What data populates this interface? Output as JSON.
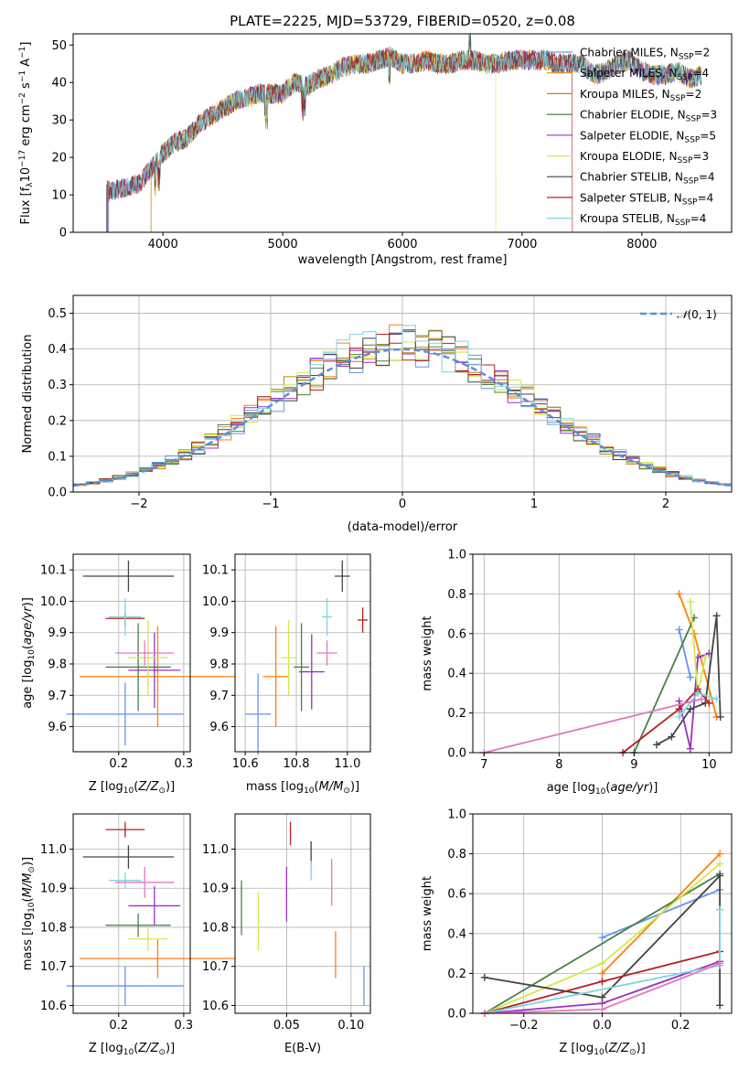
{
  "figure": {
    "title": "PLATE=2225, MJD=53729, FIBERID=0520, z=0.08"
  },
  "series": [
    {
      "name": "Chabrier MILES, N$_{SSP}$=2",
      "label": "Chabrier MILES, N",
      "nssp": "=2",
      "color": "#6495ed"
    },
    {
      "name": "Salpeter MILES, N$_{SSP}$=4",
      "label": "Salpeter MILES, N",
      "nssp": "=4",
      "color": "#ff7f0e"
    },
    {
      "name": "Kroupa MILES, N$_{SSP}$=2",
      "label": "Kroupa MILES, N",
      "nssp": "=2",
      "color": "#b8860b"
    },
    {
      "name": "Chabrier ELODIE, N$_{SSP}$=3",
      "label": "Chabrier ELODIE, N",
      "nssp": "=3",
      "color": "#4a7f4a"
    },
    {
      "name": "Salpeter ELODIE, N$_{SSP}$=5",
      "label": "Salpeter ELODIE, N",
      "nssp": "=5",
      "color": "#9b30c0"
    },
    {
      "name": "Kroupa ELODIE, N$_{SSP}$=3",
      "label": "Kroupa ELODIE, N",
      "nssp": "=3",
      "color": "#d4e84a"
    },
    {
      "name": "Chabrier STELIB, N$_{SSP}$=4",
      "label": "Chabrier STELIB, N",
      "nssp": "=4",
      "color": "#444444"
    },
    {
      "name": "Salpeter STELIB, N$_{SSP}$=4",
      "label": "Salpeter STELIB, N",
      "nssp": "=4",
      "color": "#b22222"
    },
    {
      "name": "Kroupa STELIB, N$_{SSP}$=4",
      "label": "Kroupa STELIB, N",
      "nssp": "=4",
      "color": "#7fd3e0"
    }
  ],
  "extra_colors": {
    "pink": "#e377c2",
    "normal_curve": "#5b8fd6"
  },
  "chart_data": [
    {
      "id": "spectrum",
      "type": "line",
      "xlabel": "wavelength [Angstrom, rest frame]",
      "ylabel": "Flux [f",
      "ylabel_full": "Flux [f_λ 10^-17 erg cm^-2 s^-1 A^-1]",
      "xlim": [
        3250,
        8750
      ],
      "ylim": [
        0,
        53
      ],
      "xticks": [
        4000,
        5000,
        6000,
        7000,
        8000
      ],
      "yticks": [
        0,
        10,
        20,
        30,
        40,
        50
      ],
      "grid": false,
      "legend": "top-right",
      "continuum_x": [
        3550,
        3700,
        3800,
        3900,
        4000,
        4100,
        4200,
        4300,
        4400,
        4500,
        4600,
        4700,
        4800,
        4900,
        5000,
        5100,
        5200,
        5300,
        5400,
        5500,
        5600,
        5700,
        5800,
        5900,
        6000,
        6100,
        6200,
        6300,
        6400,
        6500,
        6600,
        6700,
        6800,
        6900,
        7000,
        7100,
        7200,
        7300,
        7400,
        7500,
        7600,
        7700,
        7800,
        7900,
        8000,
        8100,
        8200,
        8300,
        8400,
        8500
      ],
      "continuum_y": [
        11,
        12,
        13,
        17,
        21,
        24,
        25,
        29,
        31,
        33,
        35,
        36,
        37,
        37,
        37,
        40,
        39,
        41,
        42,
        44,
        45,
        45,
        46,
        47,
        45,
        45,
        46,
        45,
        45,
        46,
        46,
        45,
        45,
        46,
        46,
        46,
        46,
        45,
        45,
        45,
        42,
        43,
        45,
        46,
        43,
        42,
        42,
        43,
        41,
        42
      ]
    },
    {
      "id": "residuals",
      "type": "histogram",
      "xlabel": "(data-model)/error",
      "ylabel": "Normed distribution",
      "xlim": [
        -2.5,
        2.5
      ],
      "ylim": [
        0,
        0.55
      ],
      "xticks": [
        -2,
        -1,
        0,
        1,
        2
      ],
      "xticklabels": [
        "−2",
        "−1",
        "0",
        "1",
        "2"
      ],
      "yticks": [
        0,
        0.1,
        0.2,
        0.3,
        0.4,
        0.5
      ],
      "yticklabels": [
        "0.0",
        "0.1",
        "0.2",
        "0.3",
        "0.4",
        "0.5"
      ],
      "grid": true,
      "legend": "top-right",
      "legend_label": "N(0,1)"
    },
    {
      "id": "age_vs_Z",
      "type": "scatter",
      "xlabel": "Z [log10(Z/Z☉)]",
      "ylabel": "age  [log10(age/yr)]",
      "xlim": [
        0.13,
        0.31
      ],
      "ylim": [
        9.52,
        10.15
      ],
      "xticks": [
        0.2,
        0.3
      ],
      "xticklabels": [
        "0.2",
        "0.3"
      ],
      "yticks": [
        9.6,
        9.7,
        9.8,
        9.9,
        10.0,
        10.1
      ],
      "yticklabels": [
        "9.6",
        "9.7",
        "9.8",
        "9.9",
        "10.0",
        "10.1"
      ],
      "grid": true,
      "points": [
        {
          "s": 0,
          "x": 0.21,
          "xe": 0.09,
          "y": 9.64,
          "ye": 0.1
        },
        {
          "s": 1,
          "x": 0.26,
          "xe": 0.12,
          "y": 9.76,
          "ye": 0.16
        },
        {
          "s": 3,
          "x": 0.23,
          "xe": 0.05,
          "y": 9.79,
          "ye": 0.14
        },
        {
          "s": 4,
          "x": 0.255,
          "xe": 0.04,
          "y": 9.78,
          "ye": 0.12
        },
        {
          "s": 5,
          "x": 0.245,
          "xe": 0.03,
          "y": 9.82,
          "ye": 0.12
        },
        {
          "s": 6,
          "x": 0.215,
          "xe": 0.07,
          "y": 10.08,
          "ye": 0.05
        },
        {
          "s": 7,
          "x": 0.21,
          "xe": 0.03,
          "y": 9.945,
          "ye": 0.025
        },
        {
          "s": 8,
          "x": 0.21,
          "xe": 0.025,
          "y": 9.95,
          "ye": 0.06
        },
        {
          "s": "pink",
          "x": 0.24,
          "xe": 0.045,
          "y": 9.835,
          "ye": 0.04
        }
      ]
    },
    {
      "id": "age_vs_mass",
      "type": "scatter",
      "xlabel": "mass [log10(M/M☉)]",
      "ylabel": "",
      "xlim": [
        10.56,
        11.09
      ],
      "ylim": [
        9.52,
        10.15
      ],
      "xticks": [
        10.6,
        10.8,
        11.0
      ],
      "xticklabels": [
        "10.6",
        "10.8",
        "11.0"
      ],
      "yticks": [
        9.6,
        9.7,
        9.8,
        9.9,
        10.0,
        10.1
      ],
      "yticklabels": [
        "9.6",
        "9.7",
        "9.8",
        "9.9",
        "10.0",
        "10.1"
      ],
      "grid": true,
      "points": [
        {
          "s": 0,
          "x": 10.65,
          "xe": 0.05,
          "y": 9.64,
          "ye": 0.13
        },
        {
          "s": 1,
          "x": 10.72,
          "xe": 0.05,
          "y": 9.76,
          "ye": 0.16
        },
        {
          "s": 3,
          "x": 10.82,
          "xe": 0.03,
          "y": 9.79,
          "ye": 0.14
        },
        {
          "s": 4,
          "x": 10.86,
          "xe": 0.05,
          "y": 9.775,
          "ye": 0.12
        },
        {
          "s": 5,
          "x": 10.77,
          "xe": 0.03,
          "y": 9.82,
          "ye": 0.12
        },
        {
          "s": 6,
          "x": 10.98,
          "xe": 0.03,
          "y": 10.08,
          "ye": 0.05
        },
        {
          "s": 7,
          "x": 11.06,
          "xe": 0.02,
          "y": 9.94,
          "ye": 0.04
        },
        {
          "s": 8,
          "x": 10.92,
          "xe": 0.02,
          "y": 9.95,
          "ye": 0.06
        },
        {
          "s": "pink",
          "x": 10.92,
          "xe": 0.04,
          "y": 9.835,
          "ye": 0.04
        }
      ]
    },
    {
      "id": "mass_weight_vs_age",
      "type": "line",
      "xlabel": "age  [log10(age/yr)]",
      "ylabel": "mass weight",
      "xlim": [
        6.85,
        10.3
      ],
      "ylim": [
        0,
        1
      ],
      "xticks": [
        7,
        8,
        9,
        10
      ],
      "xticklabels": [
        "7",
        "8",
        "9",
        "10"
      ],
      "yticks": [
        0,
        0.2,
        0.4,
        0.6,
        0.8,
        1.0
      ],
      "yticklabels": [
        "0.0",
        "0.2",
        "0.4",
        "0.6",
        "0.8",
        "1.0"
      ],
      "grid": true,
      "lines": [
        {
          "s": 0,
          "x": [
            9.6,
            9.75
          ],
          "y": [
            0.62,
            0.38
          ]
        },
        {
          "s": 1,
          "x": [
            9.6,
            9.8,
            10.1
          ],
          "y": [
            0.8,
            0.6,
            0.18
          ]
        },
        {
          "s": 3,
          "x": [
            9.0,
            9.8
          ],
          "y": [
            0.0,
            0.68
          ]
        },
        {
          "s": 4,
          "x": [
            9.6,
            9.75,
            9.85,
            10.0
          ],
          "y": [
            0.26,
            0.02,
            0.48,
            0.5
          ]
        },
        {
          "s": 5,
          "x": [
            9.75,
            9.85,
            9.95
          ],
          "y": [
            0.76,
            0.3,
            0.48
          ]
        },
        {
          "s": 6,
          "x": [
            9.3,
            9.5,
            9.75,
            9.95,
            10.1,
            10.15
          ],
          "y": [
            0.04,
            0.08,
            0.22,
            0.25,
            0.69,
            0.18
          ]
        },
        {
          "s": 7,
          "x": [
            8.85,
            9.6,
            9.85,
            10.0
          ],
          "y": [
            0.0,
            0.22,
            0.32,
            0.25
          ]
        },
        {
          "s": 8,
          "x": [
            9.6,
            9.85,
            10.1
          ],
          "y": [
            0.18,
            0.3,
            0.27
          ]
        },
        {
          "s": "pink",
          "x": [
            7.0,
            9.9
          ],
          "y": [
            0.0,
            0.27
          ]
        }
      ]
    },
    {
      "id": "mass_vs_Z",
      "type": "scatter",
      "xlabel": "Z [log10(Z/Z☉)]",
      "ylabel": "mass [log10(M/M☉)]",
      "xlim": [
        0.13,
        0.31
      ],
      "ylim": [
        10.58,
        11.09
      ],
      "xticks": [
        0.2,
        0.3
      ],
      "xticklabels": [
        "0.2",
        "0.3"
      ],
      "yticks": [
        10.6,
        10.7,
        10.8,
        10.9,
        11.0
      ],
      "yticklabels": [
        "10.6",
        "10.7",
        "10.8",
        "10.9",
        "11.0"
      ],
      "grid": true,
      "points": [
        {
          "s": 0,
          "x": 0.21,
          "xe": 0.09,
          "y": 10.65,
          "ye": 0.05
        },
        {
          "s": 1,
          "x": 0.26,
          "xe": 0.12,
          "y": 10.72,
          "ye": 0.05
        },
        {
          "s": 3,
          "x": 0.23,
          "xe": 0.05,
          "y": 10.805,
          "ye": 0.03
        },
        {
          "s": 4,
          "x": 0.255,
          "xe": 0.04,
          "y": 10.855,
          "ye": 0.05
        },
        {
          "s": 5,
          "x": 0.245,
          "xe": 0.03,
          "y": 10.77,
          "ye": 0.03
        },
        {
          "s": 6,
          "x": 0.215,
          "xe": 0.07,
          "y": 10.98,
          "ye": 0.03
        },
        {
          "s": 7,
          "x": 0.21,
          "xe": 0.03,
          "y": 11.05,
          "ye": 0.02
        },
        {
          "s": 8,
          "x": 0.21,
          "xe": 0.025,
          "y": 10.92,
          "ye": 0.02
        },
        {
          "s": "pink",
          "x": 0.24,
          "xe": 0.045,
          "y": 10.915,
          "ye": 0.04
        }
      ]
    },
    {
      "id": "mass_vs_EBV",
      "type": "scatter",
      "xlabel": "E(B-V)",
      "ylabel": "",
      "xlim": [
        0.01,
        0.115
      ],
      "ylim": [
        10.58,
        11.09
      ],
      "xticks": [
        0.05,
        0.1
      ],
      "xticklabels": [
        "0.05",
        "0.10"
      ],
      "yticks": [
        10.6,
        10.7,
        10.8,
        10.9,
        11.0
      ],
      "yticklabels": [
        "10.6",
        "10.7",
        "10.8",
        "10.9",
        "11.0"
      ],
      "grid": true,
      "points": [
        {
          "s": 0,
          "x": 0.11,
          "xe": 0,
          "y": 10.65,
          "ye": 0.05
        },
        {
          "s": 1,
          "x": 0.088,
          "xe": 0,
          "y": 10.73,
          "ye": 0.06
        },
        {
          "s": 3,
          "x": 0.015,
          "xe": 0,
          "y": 10.85,
          "ye": 0.07
        },
        {
          "s": 4,
          "x": 0.05,
          "xe": 0,
          "y": 10.885,
          "ye": 0.07
        },
        {
          "s": 5,
          "x": 0.028,
          "xe": 0,
          "y": 10.815,
          "ye": 0.075
        },
        {
          "s": 6,
          "x": 0.069,
          "xe": 0,
          "y": 10.99,
          "ye": 0.03
        },
        {
          "s": 7,
          "x": 0.053,
          "xe": 0,
          "y": 11.04,
          "ye": 0.03
        },
        {
          "s": 8,
          "x": 0.069,
          "xe": 0,
          "y": 10.945,
          "ye": 0.025
        },
        {
          "s": "pink",
          "x": 0.085,
          "xe": 0,
          "y": 10.915,
          "ye": 0.06
        }
      ]
    },
    {
      "id": "mass_weight_vs_Z",
      "type": "line",
      "xlabel": "Z [log10(Z/Z☉)]",
      "ylabel": "mass weight",
      "xlim": [
        -0.33,
        0.33
      ],
      "ylim": [
        0,
        1
      ],
      "xticks": [
        -0.2,
        0,
        0.2
      ],
      "xticklabels": [
        "−0.2",
        "0.0",
        "0.2"
      ],
      "yticks": [
        0,
        0.2,
        0.4,
        0.6,
        0.8,
        1.0
      ],
      "yticklabels": [
        "0.0",
        "0.2",
        "0.4",
        "0.6",
        "0.8",
        "1.0"
      ],
      "grid": true,
      "lines": [
        {
          "s": 0,
          "x": [
            0.0,
            0.3
          ],
          "y": [
            0.38,
            0.62
          ]
        },
        {
          "s": 1,
          "x": [
            0.0,
            0.3
          ],
          "y": [
            0.2,
            0.8
          ]
        },
        {
          "s": 3,
          "x": [
            -0.3,
            0.3
          ],
          "y": [
            0.0,
            0.7
          ]
        },
        {
          "s": 4,
          "x": [
            -0.3,
            0.0,
            0.3
          ],
          "y": [
            0.0,
            0.05,
            0.26
          ]
        },
        {
          "s": 5,
          "x": [
            -0.3,
            0.0,
            0.3
          ],
          "y": [
            0.0,
            0.25,
            0.75
          ]
        },
        {
          "s": 6,
          "x": [
            -0.3,
            0.0,
            0.3,
            0.3
          ],
          "y": [
            0.18,
            0.08,
            0.69,
            0.04
          ]
        },
        {
          "s": 7,
          "x": [
            -0.3,
            0.0,
            0.3
          ],
          "y": [
            0.0,
            0.16,
            0.31
          ]
        },
        {
          "s": 8,
          "x": [
            -0.3,
            0.3,
            0.3
          ],
          "y": [
            0.0,
            0.24,
            0.52
          ]
        },
        {
          "s": "pink",
          "x": [
            -0.3,
            0.0,
            0.3
          ],
          "y": [
            0.0,
            0.02,
            0.25
          ]
        }
      ]
    }
  ]
}
